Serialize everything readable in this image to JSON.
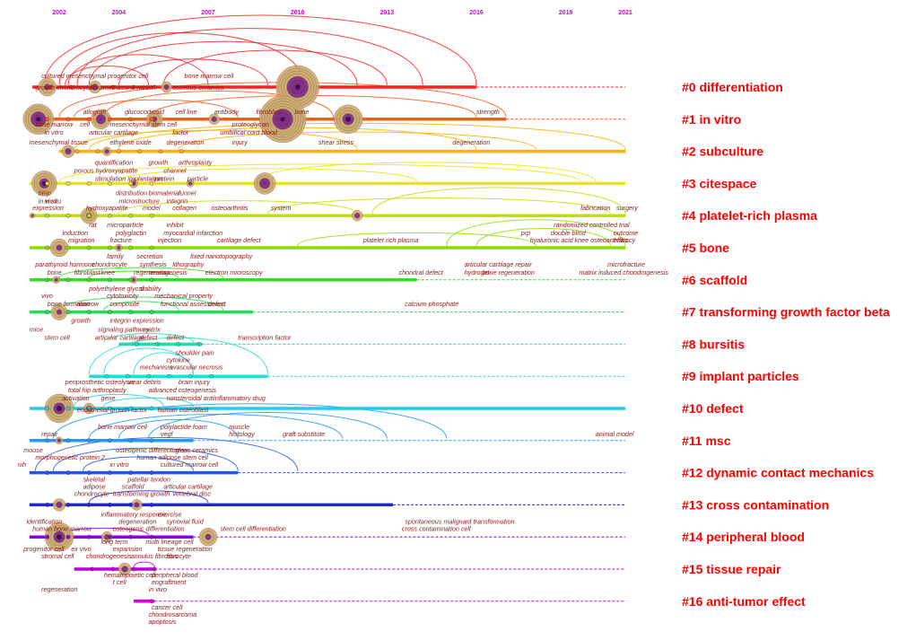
{
  "years": [
    "2002",
    "2004",
    "2007",
    "2010",
    "2013",
    "2016",
    "2019",
    "2021"
  ],
  "colors": {
    "year_label": "#d400d4",
    "cluster_label": "#ff0000",
    "term_text": "#8b1a1a",
    "node_outer": "#c8b070",
    "node_inner": "#7a2a8a",
    "node_center": "#3a0a5a"
  },
  "clusters": [
    {
      "id": "#0",
      "name": "differentiation",
      "color": "#ff2020"
    },
    {
      "id": "#1",
      "name": "in vitro",
      "color": "#ff5a1a"
    },
    {
      "id": "#2",
      "name": "subculture",
      "color": "#ffb000"
    },
    {
      "id": "#3",
      "name": "citespace",
      "color": "#e8e800"
    },
    {
      "id": "#4",
      "name": "platelet-rich plasma",
      "color": "#c0e000"
    },
    {
      "id": "#5",
      "name": "bone",
      "color": "#88e000"
    },
    {
      "id": "#6",
      "name": "scaffold",
      "color": "#33dd22"
    },
    {
      "id": "#7",
      "name": "transforming growth factor beta",
      "color": "#22dd55"
    },
    {
      "id": "#8",
      "name": "bursitis",
      "color": "#22ddaa"
    },
    {
      "id": "#9",
      "name": "implant particles",
      "color": "#22dddd"
    },
    {
      "id": "#10",
      "name": "defect",
      "color": "#22ccee"
    },
    {
      "id": "#11",
      "name": "msc",
      "color": "#2299ff"
    },
    {
      "id": "#12",
      "name": "dynamic contact mechanics",
      "color": "#2255ee"
    },
    {
      "id": "#13",
      "name": "cross contamination",
      "color": "#2222dd"
    },
    {
      "id": "#14",
      "name": "peripheral blood",
      "color": "#8800ee"
    },
    {
      "id": "#15",
      "name": "tissue repair",
      "color": "#bb00dd"
    },
    {
      "id": "#16",
      "name": "anti-tumor effect",
      "color": "#dd00dd"
    }
  ],
  "terms": [
    {
      "text": "cultured mesenchymal progenitor cell",
      "row": 0,
      "year": 2001.4,
      "dy": -10
    },
    {
      "text": "bone marrow cell",
      "row": 0,
      "year": 2006.2,
      "dy": -10
    },
    {
      "text": "growth chondrocyte",
      "row": 0,
      "year": 2001.2,
      "dy": 3
    },
    {
      "text": "dexamethasone rabbit",
      "row": 0,
      "year": 2003.0,
      "dy": 3
    },
    {
      "text": "osseous ceramics",
      "row": 0,
      "year": 2005.8,
      "dy": 3
    },
    {
      "text": "allograft",
      "row": 1,
      "year": 2002.8,
      "dy": -6
    },
    {
      "text": "glucocorticoid",
      "row": 1,
      "year": 2004.2,
      "dy": -6
    },
    {
      "text": "cell line",
      "row": 1,
      "year": 2005.9,
      "dy": -6
    },
    {
      "text": "antibody",
      "row": 1,
      "year": 2007.2,
      "dy": -6
    },
    {
      "text": "fibroblast",
      "row": 1,
      "year": 2008.6,
      "dy": -6
    },
    {
      "text": "bone",
      "row": 1,
      "year": 2009.9,
      "dy": -6
    },
    {
      "text": "strength",
      "row": 1,
      "year": 2016.0,
      "dy": -6
    },
    {
      "text": "bone marrow",
      "row": 1,
      "year": 2001.2,
      "dy": 8
    },
    {
      "text": "cell",
      "row": 1,
      "year": 2002.7,
      "dy": 8
    },
    {
      "text": "mesenchymal stem cell",
      "row": 1,
      "year": 2003.7,
      "dy": 8
    },
    {
      "text": "proteoglycan",
      "row": 1,
      "year": 2007.8,
      "dy": 8
    },
    {
      "text": "in vitro",
      "row": 1,
      "year": 2001.5,
      "dy": 17
    },
    {
      "text": "articular cartilage",
      "row": 1,
      "year": 2003.0,
      "dy": 17
    },
    {
      "text": "factor",
      "row": 1,
      "year": 2005.8,
      "dy": 17
    },
    {
      "text": "umbilical cord blood",
      "row": 1,
      "year": 2007.4,
      "dy": 17
    },
    {
      "text": "mesenchymal tissue",
      "row": 1,
      "year": 2001.0,
      "dy": 28
    },
    {
      "text": "ethylene oxide",
      "row": 1,
      "year": 2003.7,
      "dy": 28
    },
    {
      "text": "degeneration",
      "row": 1,
      "year": 2005.6,
      "dy": 28
    },
    {
      "text": "injury",
      "row": 1,
      "year": 2007.8,
      "dy": 28
    },
    {
      "text": "shear stress",
      "row": 1,
      "year": 2010.7,
      "dy": 28
    },
    {
      "text": "degeneration",
      "row": 1,
      "year": 2015.2,
      "dy": 28
    },
    {
      "text": "quantification",
      "row": 2,
      "year": 2003.2,
      "dy": 15
    },
    {
      "text": "growth",
      "row": 2,
      "year": 2005.0,
      "dy": 15
    },
    {
      "text": "arthroplasty",
      "row": 2,
      "year": 2006.0,
      "dy": 15
    },
    {
      "text": "porous hydroxyapatite",
      "row": 2,
      "year": 2002.5,
      "dy": 24
    },
    {
      "text": "channel",
      "row": 2,
      "year": 2005.5,
      "dy": 24
    },
    {
      "text": "stimulation",
      "row": 2,
      "year": 2003.2,
      "dy": 33
    },
    {
      "text": "implantation",
      "row": 2,
      "year": 2004.3,
      "dy": 33
    },
    {
      "text": "protein",
      "row": 2,
      "year": 2005.2,
      "dy": 33
    },
    {
      "text": "particle",
      "row": 2,
      "year": 2006.3,
      "dy": 33
    },
    {
      "text": "bmp",
      "row": 3,
      "year": 2001.3,
      "dy": 13
    },
    {
      "text": "in vivo",
      "row": 3,
      "year": 2001.3,
      "dy": 22
    },
    {
      "text": "distribution",
      "row": 3,
      "year": 2003.9,
      "dy": 13
    },
    {
      "text": "biomaterial",
      "row": 3,
      "year": 2005.0,
      "dy": 13
    },
    {
      "text": "tunnel",
      "row": 3,
      "year": 2006.0,
      "dy": 13
    },
    {
      "text": "microstructure",
      "row": 3,
      "year": 2004.0,
      "dy": 22
    },
    {
      "text": "integrin",
      "row": 3,
      "year": 2005.6,
      "dy": 22
    },
    {
      "text": "hydroxyapatite",
      "row": 4,
      "year": 2002.9,
      "dy": -6
    },
    {
      "text": "model",
      "row": 4,
      "year": 2004.8,
      "dy": -6
    },
    {
      "text": "collagen",
      "row": 4,
      "year": 2005.8,
      "dy": -6
    },
    {
      "text": "osteoarthritis",
      "row": 4,
      "year": 2007.1,
      "dy": -6
    },
    {
      "text": "system",
      "row": 4,
      "year": 2009.1,
      "dy": -6
    },
    {
      "text": "fabrication",
      "row": 4,
      "year": 2019.5,
      "dy": -6
    },
    {
      "text": "surgery",
      "row": 4,
      "year": 2020.7,
      "dy": -6
    },
    {
      "text": "rat",
      "row": 4,
      "year": 2003.0,
      "dy": 13
    },
    {
      "text": "microparticle",
      "row": 4,
      "year": 2003.6,
      "dy": 13
    },
    {
      "text": "inhibit",
      "row": 4,
      "year": 2005.6,
      "dy": 13
    },
    {
      "text": "randomized controlled trial",
      "row": 4,
      "year": 2018.6,
      "dy": 13
    },
    {
      "text": "induction",
      "row": 4,
      "year": 2002.1,
      "dy": 22
    },
    {
      "text": "polyglactin",
      "row": 4,
      "year": 2003.9,
      "dy": 22
    },
    {
      "text": "myocardial infarction",
      "row": 4,
      "year": 2005.5,
      "dy": 22
    },
    {
      "text": "double blind",
      "row": 4,
      "year": 2018.5,
      "dy": 22
    },
    {
      "text": "outcome",
      "row": 4,
      "year": 2020.6,
      "dy": 22
    },
    {
      "text": "expression",
      "row": 4,
      "year": 2001.1,
      "dy": -6
    },
    {
      "text": "in situ",
      "row": 3,
      "year": 2001.5,
      "dy": 22
    },
    {
      "text": "hyaluronic acid",
      "row": 5,
      "year": 2017.8,
      "dy": -6
    },
    {
      "text": "prp",
      "row": 5,
      "year": 2017.5,
      "dy": -14
    },
    {
      "text": "knee osteoarthritis",
      "row": 5,
      "year": 2019.3,
      "dy": -6
    },
    {
      "text": "efficacy",
      "row": 5,
      "year": 2020.6,
      "dy": -6
    },
    {
      "text": "migration",
      "row": 5,
      "year": 2002.3,
      "dy": -6
    },
    {
      "text": "fracture",
      "row": 5,
      "year": 2003.7,
      "dy": -6
    },
    {
      "text": "injection",
      "row": 5,
      "year": 2005.3,
      "dy": -6
    },
    {
      "text": "cartilage defect",
      "row": 5,
      "year": 2007.3,
      "dy": -6
    },
    {
      "text": "platelet rich plasma",
      "row": 5,
      "year": 2012.2,
      "dy": -6
    },
    {
      "text": "family",
      "row": 5,
      "year": 2003.6,
      "dy": 12
    },
    {
      "text": "secretion",
      "row": 5,
      "year": 2004.6,
      "dy": 12
    },
    {
      "text": "fixed nanotopography",
      "row": 5,
      "year": 2006.4,
      "dy": 12
    },
    {
      "text": "parathyroid hormone",
      "row": 5,
      "year": 2001.2,
      "dy": 21
    },
    {
      "text": "chondrocyte",
      "row": 5,
      "year": 2003.1,
      "dy": 21
    },
    {
      "text": "synthesis",
      "row": 5,
      "year": 2004.7,
      "dy": 21
    },
    {
      "text": "lithography",
      "row": 5,
      "year": 2005.8,
      "dy": 21
    },
    {
      "text": "bone",
      "row": 5,
      "year": 2001.6,
      "dy": 30
    },
    {
      "text": "fibroblast",
      "row": 5,
      "year": 2002.5,
      "dy": 30
    },
    {
      "text": "knee",
      "row": 5,
      "year": 2003.4,
      "dy": 30
    },
    {
      "text": "regeneration",
      "row": 5,
      "year": 2004.5,
      "dy": 30
    },
    {
      "text": "neurogenesis",
      "row": 5,
      "year": 2005.0,
      "dy": 30
    },
    {
      "text": "electron microscopy",
      "row": 5,
      "year": 2006.9,
      "dy": 30
    },
    {
      "text": "articular cartilage repair",
      "row": 5,
      "year": 2015.6,
      "dy": 21
    },
    {
      "text": "hydrogel",
      "row": 5,
      "year": 2015.6,
      "dy": 30
    },
    {
      "text": "bone regeneration",
      "row": 5,
      "year": 2016.2,
      "dy": 30
    },
    {
      "text": "microfracture",
      "row": 5,
      "year": 2020.4,
      "dy": 21
    },
    {
      "text": "matrix induced chondrogenesis",
      "row": 5,
      "year": 2019.7,
      "dy": 30
    },
    {
      "text": "chondral defect",
      "row": 6,
      "year": 2013.4,
      "dy": -6
    },
    {
      "text": "polyethylene glycol",
      "row": 6,
      "year": 2003.0,
      "dy": 12
    },
    {
      "text": "stability",
      "row": 6,
      "year": 2004.7,
      "dy": 12
    },
    {
      "text": "vivo",
      "row": 6,
      "year": 2001.4,
      "dy": 20
    },
    {
      "text": "cytotoxicity",
      "row": 6,
      "year": 2003.6,
      "dy": 20
    },
    {
      "text": "mechanical property",
      "row": 6,
      "year": 2005.2,
      "dy": 20
    },
    {
      "text": "bone formation",
      "row": 6,
      "year": 2001.6,
      "dy": 29
    },
    {
      "text": "marrow",
      "row": 6,
      "year": 2002.6,
      "dy": 29
    },
    {
      "text": "composite",
      "row": 6,
      "year": 2003.7,
      "dy": 29
    },
    {
      "text": "functional assessment",
      "row": 6,
      "year": 2005.4,
      "dy": 29
    },
    {
      "text": "defect",
      "row": 6,
      "year": 2007.0,
      "dy": 29
    },
    {
      "text": "calcium phosphate",
      "row": 6,
      "year": 2013.6,
      "dy": 29
    },
    {
      "text": "growth",
      "row": 7,
      "year": 2002.4,
      "dy": 12
    },
    {
      "text": "integrin expression",
      "row": 7,
      "year": 2003.7,
      "dy": 12
    },
    {
      "text": "mice",
      "row": 7,
      "year": 2001.0,
      "dy": 22
    },
    {
      "text": "signaling pathway",
      "row": 7,
      "year": 2003.3,
      "dy": 22
    },
    {
      "text": "matrix",
      "row": 7,
      "year": 2004.8,
      "dy": 22
    },
    {
      "text": "stem cell",
      "row": 7,
      "year": 2001.5,
      "dy": 31
    },
    {
      "text": "articular cartilage",
      "row": 7,
      "year": 2003.2,
      "dy": 31
    },
    {
      "text": "defect",
      "row": 7,
      "year": 2004.7,
      "dy": 31
    },
    {
      "text": "defect",
      "row": 7,
      "year": 2005.6,
      "dy": 31
    },
    {
      "text": "transcription factor",
      "row": 7,
      "year": 2008.0,
      "dy": 31
    },
    {
      "text": "shoulder pain",
      "row": 8,
      "year": 2005.9,
      "dy": 12
    },
    {
      "text": "cytokine",
      "row": 8,
      "year": 2005.6,
      "dy": 20
    },
    {
      "text": "avascular necrosis",
      "row": 8,
      "year": 2005.7,
      "dy": 28
    },
    {
      "text": "mechanism",
      "row": 8,
      "year": 2004.7,
      "dy": 28
    },
    {
      "text": "periprosthetic osteolysis",
      "row": 9,
      "year": 2002.2,
      "dy": 9
    },
    {
      "text": "wear debris",
      "row": 9,
      "year": 2004.3,
      "dy": 9
    },
    {
      "text": "brain injury",
      "row": 9,
      "year": 2006.0,
      "dy": 9
    },
    {
      "text": "total hip arthroplasty",
      "row": 9,
      "year": 2002.3,
      "dy": 18
    },
    {
      "text": "advanced osteogenesis",
      "row": 9,
      "year": 2005.0,
      "dy": 18
    },
    {
      "text": "activation",
      "row": 9,
      "year": 2002.1,
      "dy": 27
    },
    {
      "text": "gene",
      "row": 9,
      "year": 2003.4,
      "dy": 27
    },
    {
      "text": "nonsteroidal antiinflammatory drug",
      "row": 9,
      "year": 2005.6,
      "dy": 27
    },
    {
      "text": "endothelial growth factor",
      "row": 10,
      "year": 2002.6,
      "dy": 4
    },
    {
      "text": "human osteoblast",
      "row": 10,
      "year": 2005.3,
      "dy": 4
    },
    {
      "text": "bone marrow cell",
      "row": 10,
      "year": 2003.3,
      "dy": 23
    },
    {
      "text": "polylactide foam",
      "row": 10,
      "year": 2005.4,
      "dy": 23
    },
    {
      "text": "muscle",
      "row": 10,
      "year": 2007.7,
      "dy": 23
    },
    {
      "text": "repair",
      "row": 10,
      "year": 2001.4,
      "dy": 31
    },
    {
      "text": "vegf",
      "row": 10,
      "year": 2005.4,
      "dy": 31
    },
    {
      "text": "histology",
      "row": 10,
      "year": 2007.7,
      "dy": 31
    },
    {
      "text": "graft substitute",
      "row": 10,
      "year": 2009.5,
      "dy": 31
    },
    {
      "text": "animal model",
      "row": 10,
      "year": 2020.0,
      "dy": 31
    },
    {
      "text": "mouse",
      "row": 11,
      "year": 2000.8,
      "dy": 13
    },
    {
      "text": "osteogenic differentiation",
      "row": 11,
      "year": 2003.9,
      "dy": 13
    },
    {
      "text": "glass ceramics",
      "row": 11,
      "year": 2005.9,
      "dy": 13
    },
    {
      "text": "morphogenetic protein 2",
      "row": 11,
      "year": 2001.2,
      "dy": 21
    },
    {
      "text": "human adipose stem cell",
      "row": 11,
      "year": 2004.6,
      "dy": 21
    },
    {
      "text": "nih",
      "row": 11,
      "year": 2000.6,
      "dy": 29
    },
    {
      "text": "in vitro",
      "row": 11,
      "year": 2003.7,
      "dy": 29
    },
    {
      "text": "cultured marrow cell",
      "row": 11,
      "year": 2005.4,
      "dy": 29
    },
    {
      "text": "skeletal",
      "row": 12,
      "year": 2002.8,
      "dy": 10
    },
    {
      "text": "patellar tendon",
      "row": 12,
      "year": 2004.3,
      "dy": 10
    },
    {
      "text": "adipose",
      "row": 12,
      "year": 2002.8,
      "dy": 18
    },
    {
      "text": "scaffold",
      "row": 12,
      "year": 2004.1,
      "dy": 18
    },
    {
      "text": "articular cartilage",
      "row": 12,
      "year": 2005.5,
      "dy": 18
    },
    {
      "text": "chondrocyte",
      "row": 12,
      "year": 2002.5,
      "dy": 26
    },
    {
      "text": "transforming growth",
      "row": 12,
      "year": 2003.8,
      "dy": 26
    },
    {
      "text": "vertebral disc",
      "row": 12,
      "year": 2005.8,
      "dy": 26
    },
    {
      "text": "inflammatory response",
      "row": 13,
      "year": 2003.4,
      "dy": 13
    },
    {
      "text": "exercise",
      "row": 13,
      "year": 2005.3,
      "dy": 13
    },
    {
      "text": "spontaneous malignant transformation",
      "row": 13,
      "year": 2013.6,
      "dy": 21
    },
    {
      "text": "cross contamination cell",
      "row": 13,
      "year": 2013.5,
      "dy": 29
    },
    {
      "text": "identification",
      "row": 13,
      "year": 2000.9,
      "dy": 21
    },
    {
      "text": "degeneration",
      "row": 13,
      "year": 2004.0,
      "dy": 21
    },
    {
      "text": "synovial fluid",
      "row": 13,
      "year": 2005.6,
      "dy": 21
    },
    {
      "text": "human bone marrow",
      "row": 13,
      "year": 2001.1,
      "dy": 29
    },
    {
      "text": "osteogenic differentiation",
      "row": 13,
      "year": 2003.8,
      "dy": 29
    },
    {
      "text": "stem cell differentiation",
      "row": 13,
      "year": 2007.4,
      "dy": 29
    },
    {
      "text": "progenitor cell",
      "row": 14,
      "year": 2000.8,
      "dy": 16
    },
    {
      "text": "long term",
      "row": 14,
      "year": 2003.4,
      "dy": 8
    },
    {
      "text": "multi lineage cell",
      "row": 14,
      "year": 2004.9,
      "dy": 8
    },
    {
      "text": "ex vivo",
      "row": 14,
      "year": 2002.4,
      "dy": 16
    },
    {
      "text": "expansion",
      "row": 14,
      "year": 2003.8,
      "dy": 16
    },
    {
      "text": "tissue regeneration",
      "row": 14,
      "year": 2005.3,
      "dy": 16
    },
    {
      "text": "stromal cell",
      "row": 14,
      "year": 2001.4,
      "dy": 24
    },
    {
      "text": "chondrogenesis",
      "row": 14,
      "year": 2002.9,
      "dy": 24
    },
    {
      "text": "annulus fibrosus",
      "row": 14,
      "year": 2004.4,
      "dy": 24
    },
    {
      "text": "fibrocyte",
      "row": 14,
      "year": 2005.6,
      "dy": 24
    },
    {
      "text": "hematopoietic cell",
      "row": 15,
      "year": 2003.5,
      "dy": 9
    },
    {
      "text": "peripheral blood",
      "row": 15,
      "year": 2005.1,
      "dy": 9
    },
    {
      "text": "t cell",
      "row": 15,
      "year": 2003.8,
      "dy": 17
    },
    {
      "text": "engraftment",
      "row": 15,
      "year": 2005.1,
      "dy": 17
    },
    {
      "text": "regeneration",
      "row": 15,
      "year": 2001.4,
      "dy": 25
    },
    {
      "text": "in vivo",
      "row": 15,
      "year": 2005.0,
      "dy": 25
    },
    {
      "text": "cancer cell",
      "row": 16,
      "year": 2005.1,
      "dy": 9
    },
    {
      "text": "chondrosarcoma",
      "row": 16,
      "year": 2005.0,
      "dy": 17
    },
    {
      "text": "apoptosis",
      "row": 16,
      "year": 2005.0,
      "dy": 25
    }
  ]
}
